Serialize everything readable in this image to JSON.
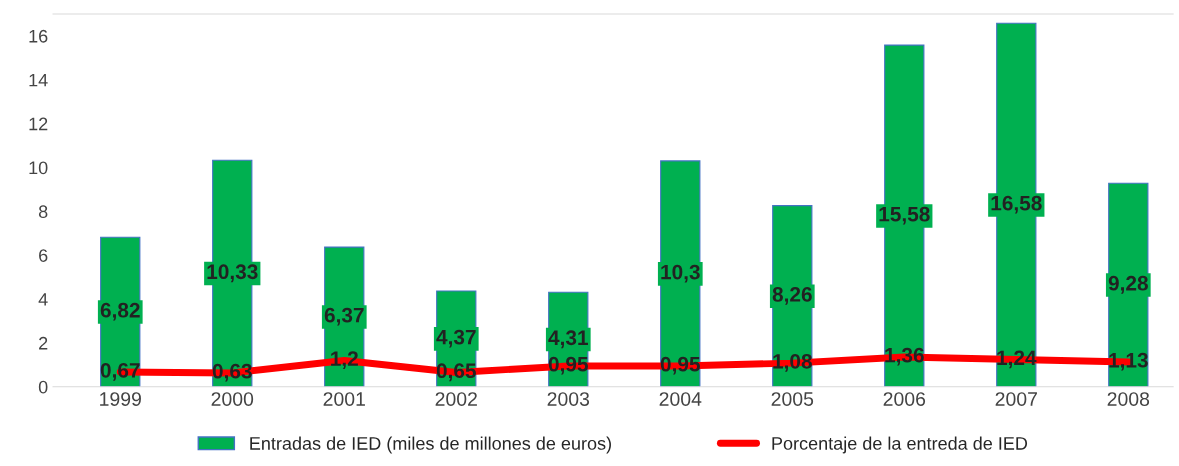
{
  "chart_data": {
    "type": "bar",
    "categories": [
      "1999",
      "2000",
      "2001",
      "2002",
      "2003",
      "2004",
      "2005",
      "2006",
      "2007",
      "2008"
    ],
    "series": [
      {
        "name": "Entradas de IED (miles de millones de euros)",
        "color": "#00b050",
        "values": [
          6.82,
          10.33,
          6.37,
          4.37,
          4.31,
          10.3,
          8.26,
          15.58,
          16.58,
          9.28
        ],
        "value_labels": [
          "6,82",
          "10,33",
          "6,37",
          "4,37",
          "4,31",
          "10,3",
          "8,26",
          "15,58",
          "16,58",
          "9,28"
        ]
      },
      {
        "name": "Porcentaje de la entreda de IED",
        "type": "line",
        "color": "#ff0000",
        "values": [
          0.67,
          0.63,
          1.2,
          0.65,
          0.95,
          0.95,
          1.08,
          1.36,
          1.24,
          1.13
        ],
        "value_labels": [
          "0,67",
          "0,63",
          "1,2",
          "0,65",
          "0,95",
          "0,95",
          "1,08",
          "1,36",
          "1,24",
          "1,13"
        ]
      }
    ],
    "ylim": [
      0,
      17
    ],
    "yticks": [
      0,
      2,
      4,
      6,
      8,
      10,
      12,
      14,
      16
    ],
    "grid": false,
    "legend": "bottom",
    "marker": "none",
    "line_style": "solid"
  }
}
